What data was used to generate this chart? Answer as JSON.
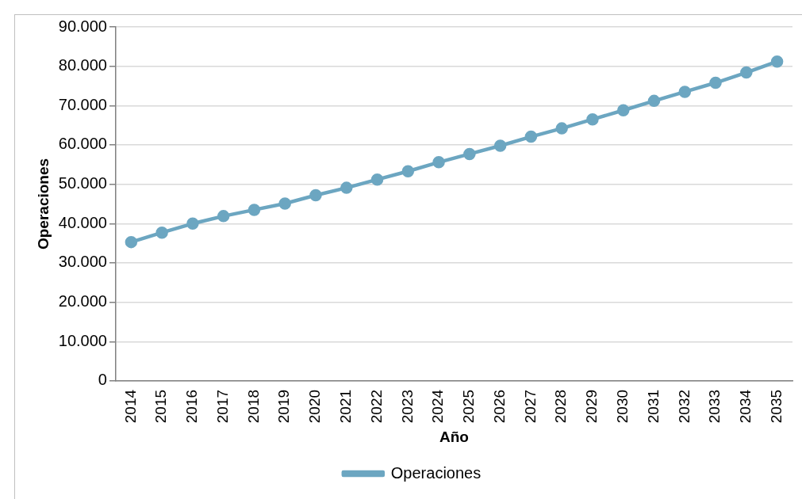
{
  "chart_data": {
    "type": "line",
    "xlabel": "Año",
    "ylabel": "Operaciones",
    "categories": [
      "2014",
      "2015",
      "2016",
      "2017",
      "2018",
      "2019",
      "2020",
      "2021",
      "2022",
      "2023",
      "2024",
      "2025",
      "2026",
      "2027",
      "2028",
      "2029",
      "2030",
      "2031",
      "2032",
      "2033",
      "2034",
      "2035"
    ],
    "series": [
      {
        "name": "Operaciones",
        "color": "#6ca6c1",
        "values": [
          35300,
          37700,
          40000,
          41900,
          43500,
          45100,
          47200,
          49100,
          51200,
          53300,
          55600,
          57700,
          59800,
          62100,
          64200,
          66500,
          68800,
          71200,
          73500,
          75800,
          78400,
          81200
        ]
      }
    ],
    "ylim": [
      0,
      90000
    ],
    "yticks": [
      {
        "value": 0,
        "label": "0"
      },
      {
        "value": 10000,
        "label": "10.000"
      },
      {
        "value": 20000,
        "label": "20.000"
      },
      {
        "value": 30000,
        "label": "30.000"
      },
      {
        "value": 40000,
        "label": "40.000"
      },
      {
        "value": 50000,
        "label": "50.000"
      },
      {
        "value": 60000,
        "label": "60.000"
      },
      {
        "value": 70000,
        "label": "70.000"
      },
      {
        "value": 80000,
        "label": "80.000"
      },
      {
        "value": 90000,
        "label": "90.000"
      }
    ],
    "grid": "y",
    "legend": "bottom",
    "marker": "circle",
    "line_style": "solid"
  }
}
